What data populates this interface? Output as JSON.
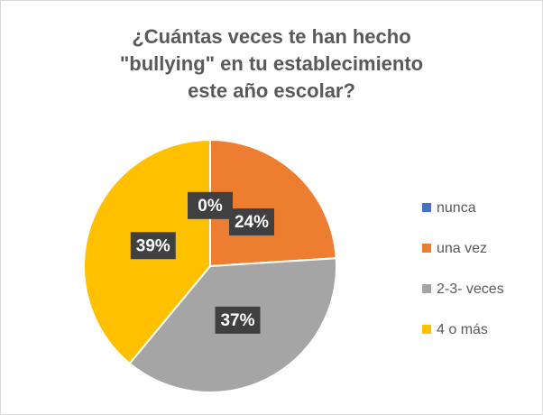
{
  "chart_data": {
    "type": "pie",
    "title": [
      "¿Cuántas veces te han hecho",
      "\"bullying\" en tu establecimiento",
      "este año escolar?"
    ],
    "categories": [
      "nunca",
      "una vez",
      "2-3- veces",
      "4 o más"
    ],
    "values": [
      0,
      24,
      37,
      39
    ],
    "value_labels": [
      "0%",
      "24%",
      "37%",
      "39%"
    ],
    "colors": [
      "#4472c4",
      "#ed7d31",
      "#a5a5a5",
      "#ffc000"
    ],
    "legend": "right"
  }
}
